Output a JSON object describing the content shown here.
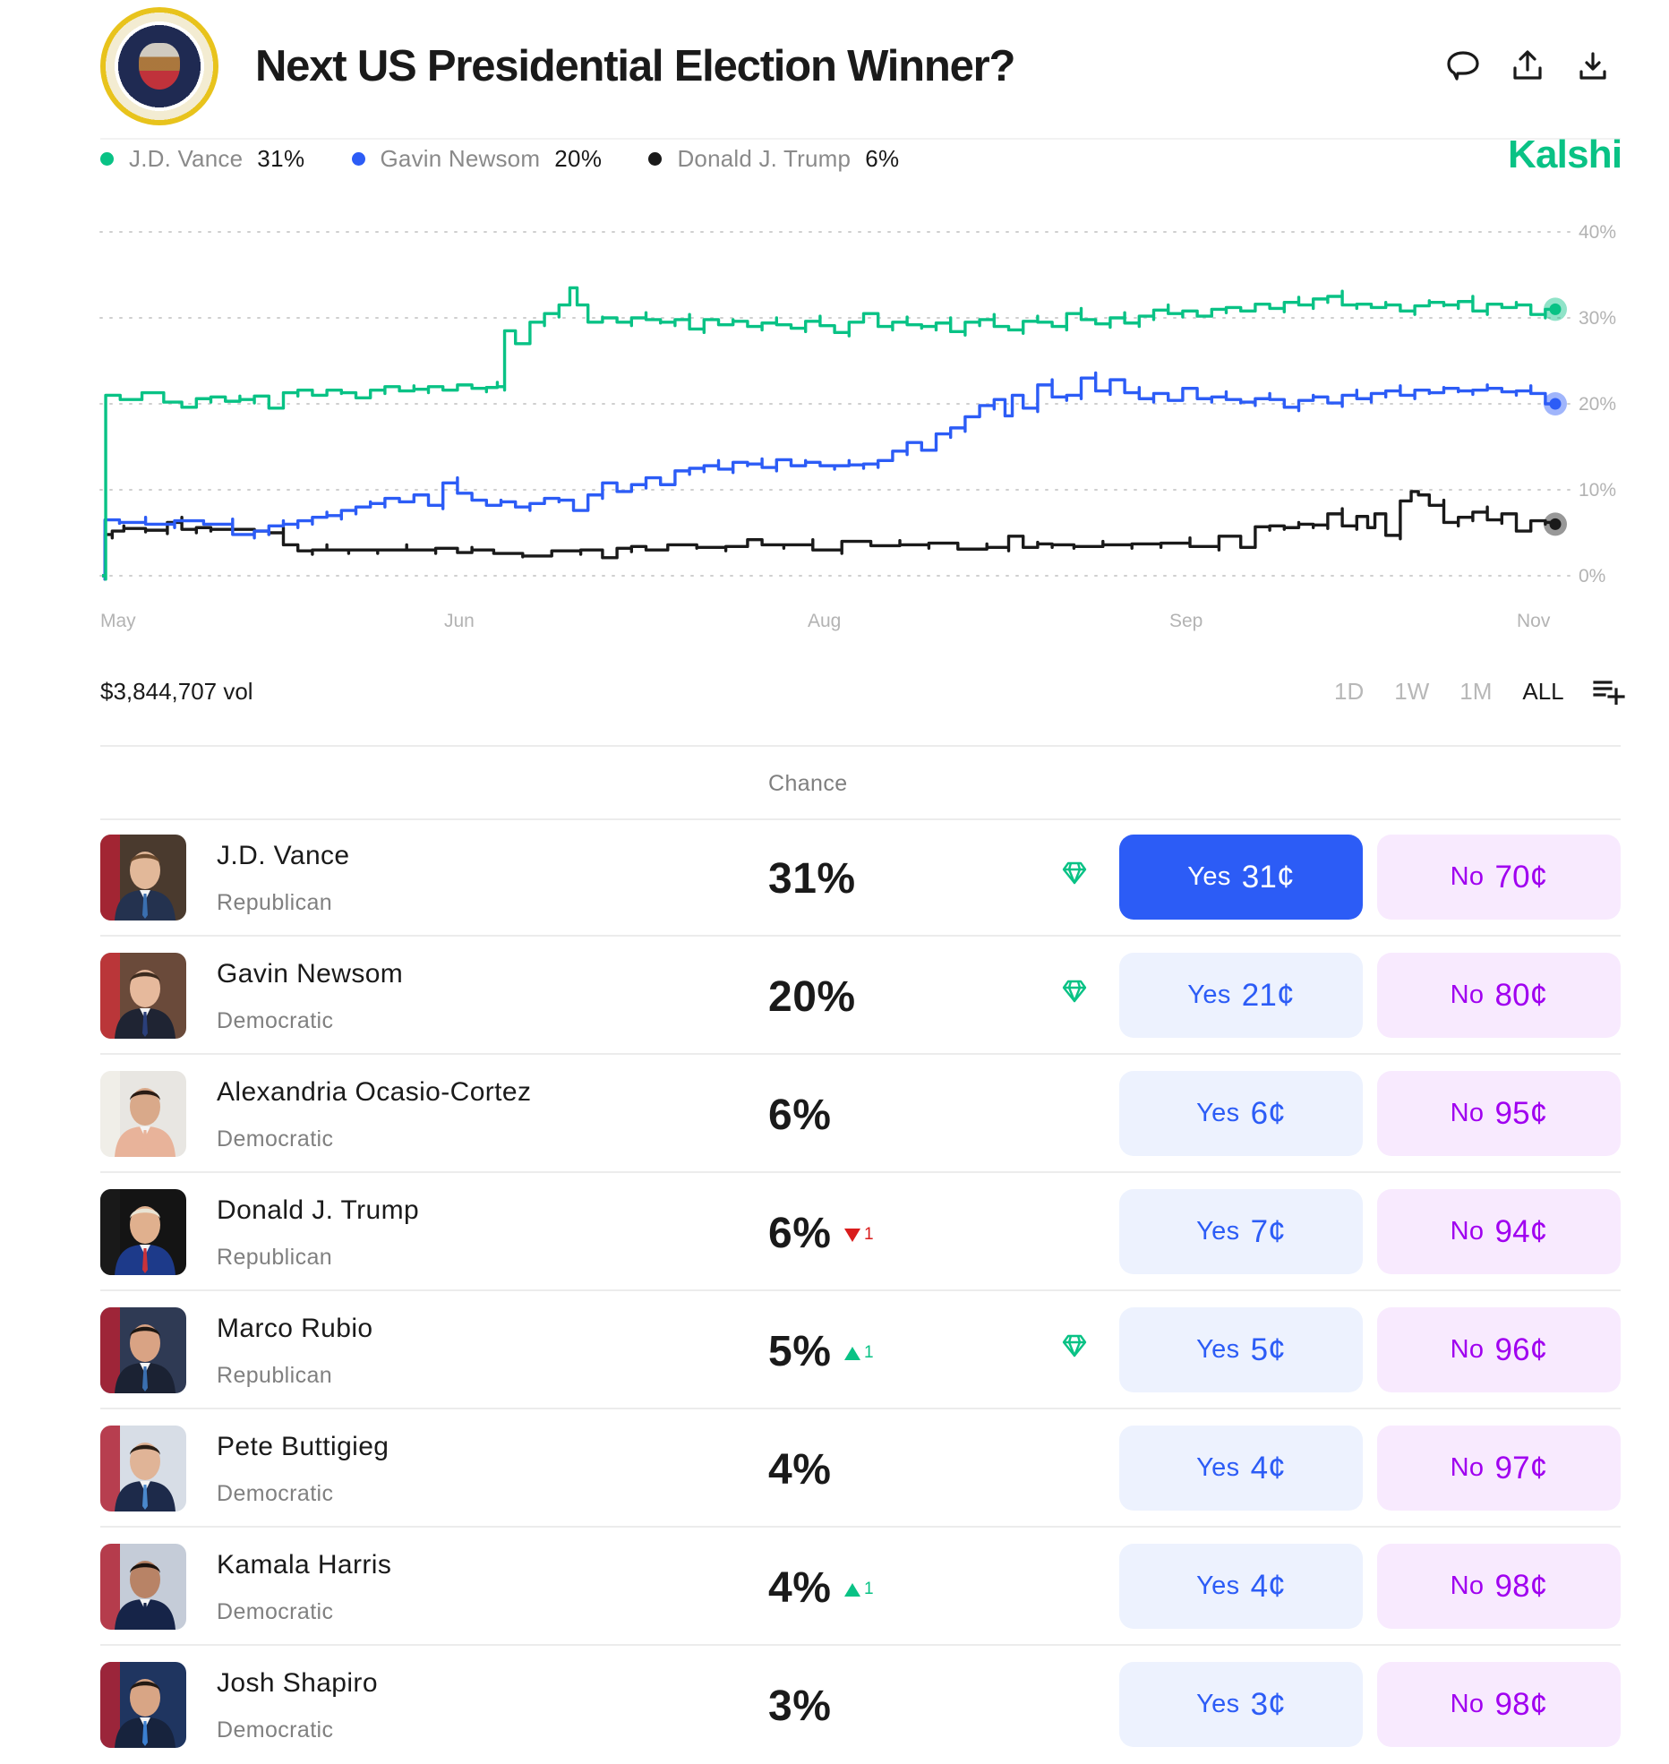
{
  "header": {
    "title": "Next US Presidential Election Winner?",
    "logo": "presidential-seal",
    "brand": "Kalshi",
    "brand_color": "#09c285",
    "icons": [
      "comment-icon",
      "share-upload-icon",
      "download-icon"
    ]
  },
  "legend": [
    {
      "name": "J.D. Vance",
      "value": "31%",
      "color": "#09c285"
    },
    {
      "name": "Gavin Newsom",
      "value": "20%",
      "color": "#2c5cf6"
    },
    {
      "name": "Donald J. Trump",
      "value": "6%",
      "color": "#1a1a1a"
    }
  ],
  "chart_data": {
    "type": "line",
    "title": "Next US Presidential Election Winner?",
    "xlabel": "",
    "ylabel": "",
    "x_ticks": [
      "May",
      "Jun",
      "Aug",
      "Sep",
      "Nov"
    ],
    "y_ticks": [
      "0%",
      "10%",
      "20%",
      "30%",
      "40%"
    ],
    "ylim": [
      0,
      40
    ],
    "grid": true,
    "grid_style": "dotted",
    "legend_position": "top-left",
    "series": [
      {
        "name": "J.D. Vance",
        "color": "#09c285",
        "last": 31,
        "x": [
          0,
          0.005,
          0.02,
          0.035,
          0.05,
          0.06,
          0.07,
          0.08,
          0.09,
          0.1,
          0.11,
          0.12,
          0.13,
          0.14,
          0.15,
          0.16,
          0.17,
          0.18,
          0.19,
          0.2,
          0.21,
          0.22,
          0.23,
          0.24,
          0.25,
          0.26,
          0.27,
          0.275,
          0.28,
          0.29,
          0.3,
          0.31,
          0.32,
          0.325,
          0.33,
          0.34,
          0.35,
          0.36,
          0.37,
          0.38,
          0.39,
          0.4,
          0.41,
          0.42,
          0.43,
          0.44,
          0.45,
          0.46,
          0.47,
          0.48,
          0.49,
          0.5,
          0.51,
          0.52,
          0.53,
          0.54,
          0.55,
          0.56,
          0.57,
          0.58,
          0.59,
          0.6,
          0.61,
          0.62,
          0.63,
          0.64,
          0.65,
          0.66,
          0.67,
          0.68,
          0.69,
          0.7,
          0.71,
          0.72,
          0.73,
          0.74,
          0.75,
          0.76,
          0.77,
          0.78,
          0.79,
          0.8,
          0.81,
          0.82,
          0.83,
          0.84,
          0.85,
          0.86,
          0.87,
          0.88,
          0.89,
          0.9,
          0.91,
          0.92,
          0.93,
          0.94,
          0.95,
          0.96,
          0.97,
          0.98,
          0.99,
          1.0
        ],
        "values": [
          0,
          21,
          20.5,
          21.3,
          20.2,
          19.6,
          20.6,
          20.8,
          20.3,
          20.5,
          20.9,
          19.5,
          21.3,
          21.6,
          21.0,
          21.6,
          21.3,
          20.7,
          21.6,
          22,
          21.5,
          21.7,
          22.0,
          21.6,
          22.2,
          21.8,
          21.9,
          22.0,
          28.5,
          27,
          29.5,
          30.5,
          31.5,
          33.5,
          31.5,
          29.5,
          30,
          29.5,
          30,
          29.8,
          29.5,
          29.8,
          28.7,
          29.8,
          29.2,
          29.6,
          29,
          29.4,
          29.2,
          28.8,
          29.6,
          29.1,
          28.3,
          29.5,
          30.5,
          29.0,
          29.5,
          29.2,
          29.0,
          29.4,
          28.4,
          29.5,
          29.8,
          29.0,
          28.6,
          29.6,
          29.5,
          29.0,
          30.5,
          29.8,
          29.3,
          30.0,
          29.4,
          30.2,
          30.9,
          30.5,
          30.8,
          30.2,
          31.0,
          31.2,
          30.8,
          31.6,
          31.1,
          31.8,
          31.5,
          32.2,
          32.5,
          31.5,
          31.6,
          31.2,
          31.5,
          30.8,
          31.4,
          31.8,
          31.5,
          31.9,
          30.8,
          31.6,
          31.2,
          31.5,
          30.4,
          31.0
        ]
      },
      {
        "name": "Gavin Newsom",
        "color": "#2c5cf6",
        "last": 20,
        "x": [
          0,
          0.004,
          0.02,
          0.04,
          0.06,
          0.08,
          0.1,
          0.11,
          0.12,
          0.13,
          0.14,
          0.15,
          0.16,
          0.17,
          0.18,
          0.19,
          0.2,
          0.21,
          0.22,
          0.23,
          0.24,
          0.25,
          0.26,
          0.27,
          0.28,
          0.29,
          0.3,
          0.31,
          0.32,
          0.33,
          0.34,
          0.35,
          0.36,
          0.37,
          0.38,
          0.39,
          0.4,
          0.41,
          0.42,
          0.43,
          0.44,
          0.45,
          0.46,
          0.47,
          0.48,
          0.49,
          0.5,
          0.51,
          0.52,
          0.53,
          0.54,
          0.55,
          0.56,
          0.57,
          0.58,
          0.59,
          0.6,
          0.61,
          0.62,
          0.625,
          0.63,
          0.64,
          0.65,
          0.66,
          0.67,
          0.68,
          0.69,
          0.7,
          0.71,
          0.72,
          0.73,
          0.74,
          0.75,
          0.76,
          0.77,
          0.78,
          0.79,
          0.8,
          0.81,
          0.82,
          0.83,
          0.84,
          0.85,
          0.86,
          0.87,
          0.88,
          0.89,
          0.9,
          0.91,
          0.92,
          0.93,
          0.94,
          0.95,
          0.96,
          0.97,
          0.98,
          0.99,
          1.0
        ],
        "values": [
          0,
          6.5,
          6.2,
          6.0,
          6.4,
          6.0,
          4.8,
          5.2,
          5.8,
          6.0,
          6.4,
          6.8,
          7.0,
          7.6,
          8.0,
          8.4,
          9.0,
          8.6,
          9.4,
          8.2,
          10.8,
          9.6,
          8.8,
          8.2,
          8.6,
          8.0,
          8.4,
          9.0,
          8.8,
          7.6,
          9.4,
          10.8,
          9.8,
          10.6,
          11.4,
          10.6,
          12.2,
          12.5,
          12.8,
          12.4,
          13.2,
          13.0,
          12.6,
          13.5,
          12.8,
          13.2,
          12.8,
          12.8,
          12.9,
          13.0,
          13.4,
          14.5,
          15.5,
          14.6,
          16.5,
          17.2,
          18.5,
          19.8,
          20.5,
          18.6,
          21.0,
          19.5,
          22.2,
          20.8,
          21.0,
          23.0,
          21.5,
          22.8,
          21.3,
          20.6,
          21.2,
          20.4,
          21.8,
          20.6,
          20.8,
          20.5,
          20.2,
          20.6,
          20.5,
          19.6,
          20.4,
          20.8,
          20.1,
          21.0,
          20.6,
          21.2,
          21.5,
          21.0,
          21.6,
          21.3,
          21.8,
          21.5,
          21.6,
          21.8,
          21.4,
          21.5,
          21.2,
          20.0
        ]
      },
      {
        "name": "Donald J. Trump",
        "color": "#1a1a1a",
        "last": 6,
        "x": [
          0,
          0.004,
          0.01,
          0.02,
          0.04,
          0.05,
          0.06,
          0.07,
          0.08,
          0.1,
          0.11,
          0.12,
          0.13,
          0.14,
          0.15,
          0.16,
          0.18,
          0.2,
          0.22,
          0.24,
          0.25,
          0.26,
          0.28,
          0.3,
          0.32,
          0.34,
          0.35,
          0.36,
          0.37,
          0.38,
          0.4,
          0.42,
          0.44,
          0.45,
          0.46,
          0.48,
          0.5,
          0.52,
          0.54,
          0.56,
          0.58,
          0.6,
          0.62,
          0.63,
          0.64,
          0.65,
          0.66,
          0.68,
          0.7,
          0.72,
          0.74,
          0.76,
          0.78,
          0.79,
          0.8,
          0.81,
          0.82,
          0.83,
          0.84,
          0.85,
          0.86,
          0.87,
          0.875,
          0.88,
          0.89,
          0.9,
          0.905,
          0.91,
          0.92,
          0.93,
          0.94,
          0.95,
          0.96,
          0.97,
          0.98,
          0.99,
          1.0
        ],
        "values": [
          0,
          4.8,
          5.2,
          5.5,
          5.3,
          6.2,
          5.4,
          5.6,
          5.4,
          5.4,
          5.2,
          5.0,
          3.6,
          2.9,
          3.0,
          3.0,
          3.0,
          3.0,
          3.0,
          3.2,
          2.7,
          3.0,
          2.6,
          2.3,
          2.9,
          3.0,
          2.1,
          3.2,
          3.4,
          3.0,
          3.6,
          3.3,
          3.4,
          4.2,
          3.6,
          3.6,
          3.0,
          4.0,
          3.5,
          3.6,
          3.8,
          3.1,
          3.3,
          4.6,
          3.3,
          3.7,
          3.6,
          3.4,
          3.6,
          3.7,
          3.8,
          3.4,
          4.6,
          3.3,
          5.7,
          5.8,
          5.6,
          6.0,
          5.9,
          7.2,
          5.8,
          6.9,
          5.6,
          7.2,
          4.7,
          8.7,
          9.8,
          9.4,
          8.2,
          6.2,
          6.8,
          7.4,
          6.5,
          7.2,
          5.2,
          6.4,
          6.2
        ]
      }
    ]
  },
  "volume": "$3,844,707 vol",
  "time_ranges": [
    {
      "label": "1D",
      "active": false
    },
    {
      "label": "1W",
      "active": false
    },
    {
      "label": "1M",
      "active": false
    },
    {
      "label": "ALL",
      "active": true
    }
  ],
  "table": {
    "column_header": "Chance",
    "rows": [
      {
        "name": "J.D. Vance",
        "party": "Republican",
        "chance": "31%",
        "delta": "",
        "delta_dir": "",
        "gem": true,
        "yes_label": "Yes",
        "yes_price": "31¢",
        "no_label": "No",
        "no_price": "70¢",
        "yes_selected": true
      },
      {
        "name": "Gavin Newsom",
        "party": "Democratic",
        "chance": "20%",
        "delta": "",
        "delta_dir": "",
        "gem": true,
        "yes_label": "Yes",
        "yes_price": "21¢",
        "no_label": "No",
        "no_price": "80¢",
        "yes_selected": false
      },
      {
        "name": "Alexandria Ocasio-Cortez",
        "party": "Democratic",
        "chance": "6%",
        "delta": "",
        "delta_dir": "",
        "gem": false,
        "yes_label": "Yes",
        "yes_price": "6¢",
        "no_label": "No",
        "no_price": "95¢",
        "yes_selected": false
      },
      {
        "name": "Donald J. Trump",
        "party": "Republican",
        "chance": "6%",
        "delta": "1",
        "delta_dir": "down",
        "gem": false,
        "yes_label": "Yes",
        "yes_price": "7¢",
        "no_label": "No",
        "no_price": "94¢",
        "yes_selected": false
      },
      {
        "name": "Marco Rubio",
        "party": "Republican",
        "chance": "5%",
        "delta": "1",
        "delta_dir": "up",
        "gem": true,
        "yes_label": "Yes",
        "yes_price": "5¢",
        "no_label": "No",
        "no_price": "96¢",
        "yes_selected": false
      },
      {
        "name": "Pete Buttigieg",
        "party": "Democratic",
        "chance": "4%",
        "delta": "",
        "delta_dir": "",
        "gem": false,
        "yes_label": "Yes",
        "yes_price": "4¢",
        "no_label": "No",
        "no_price": "97¢",
        "yes_selected": false
      },
      {
        "name": "Kamala Harris",
        "party": "Democratic",
        "chance": "4%",
        "delta": "1",
        "delta_dir": "up",
        "gem": false,
        "yes_label": "Yes",
        "yes_price": "4¢",
        "no_label": "No",
        "no_price": "98¢",
        "yes_selected": false
      },
      {
        "name": "Josh Shapiro",
        "party": "Democratic",
        "chance": "3%",
        "delta": "",
        "delta_dir": "",
        "gem": false,
        "yes_label": "Yes",
        "yes_price": "3¢",
        "no_label": "No",
        "no_price": "98¢",
        "yes_selected": false
      }
    ]
  }
}
